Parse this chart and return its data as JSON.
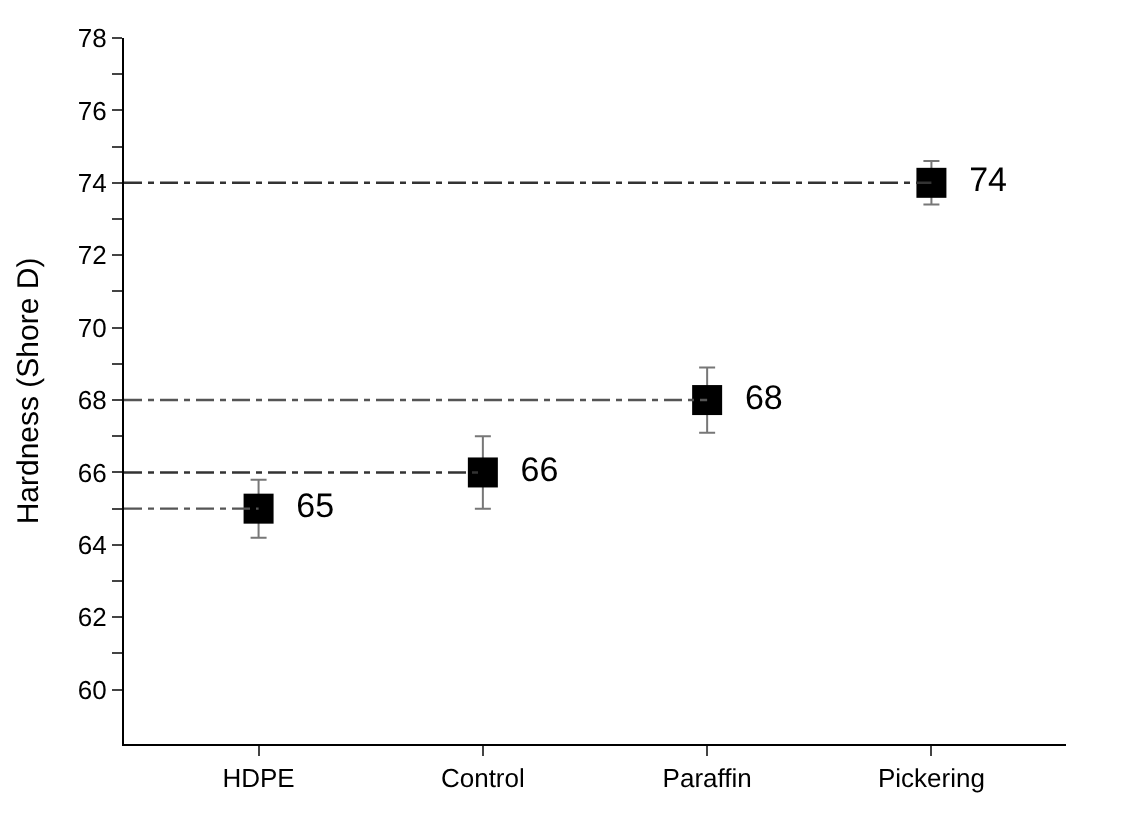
{
  "chart_data": {
    "type": "scatter",
    "ylabel": "Hardness (Shore D)",
    "categories": [
      "HDPE",
      "Control",
      "Paraffin",
      "Pickering"
    ],
    "values": [
      65,
      66,
      68,
      74
    ],
    "errors": [
      0.8,
      1.0,
      0.9,
      0.6
    ],
    "color": "#000000",
    "marker": "square",
    "data_labels": true,
    "ylim": [
      58.5,
      78
    ],
    "yticks": [
      60,
      {
        "value": 61,
        "label": null
      },
      62,
      {
        "value": 63,
        "label": null
      },
      64,
      {
        "value": 65,
        "label": null
      },
      66,
      {
        "value": 67,
        "label": null
      },
      68,
      {
        "value": 69,
        "label": null
      },
      70,
      {
        "value": 71,
        "label": null
      },
      72,
      {
        "value": 73,
        "label": null
      },
      74,
      {
        "value": 75,
        "label": null
      },
      76,
      {
        "value": 77,
        "label": null
      },
      78
    ],
    "ref_lines": [
      {
        "axis": "y",
        "value": 65,
        "color": "#555555"
      },
      {
        "axis": "y",
        "value": 66,
        "color": "#333333"
      },
      {
        "axis": "y",
        "value": 68,
        "color": "#555555"
      },
      {
        "axis": "y",
        "value": 74,
        "color": "#333333"
      }
    ]
  }
}
